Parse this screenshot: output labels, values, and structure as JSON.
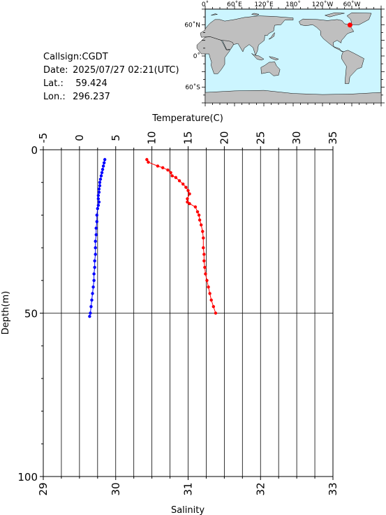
{
  "station": {
    "callsign_label": "Callsign:",
    "callsign": "CGDT",
    "date_label": "Date:",
    "date": "2025/07/27 02:21(UTC)",
    "lat_label": "Lat.:",
    "lat": "59.424",
    "lon_label": "Lon.:",
    "lon": "296.237"
  },
  "map": {
    "lon_ticks": [
      "0˚",
      "60˚E",
      "120˚E",
      "180˚",
      "120˚W",
      "60˚W"
    ],
    "lat_ticks": [
      "60˚N",
      "0˚",
      "60˚S"
    ],
    "ocean_color": "#ccf5ff",
    "land_color": "#bfbfbf",
    "marker_color": "#ff0000"
  },
  "chart_data": {
    "type": "line",
    "depth_label": "Depth(m)",
    "depth_range": [
      0,
      100
    ],
    "depth_ticks": [
      "0",
      "50",
      "100"
    ],
    "temperature_axis": {
      "label": "Temperature(C)",
      "range": [
        -5,
        35
      ],
      "ticks": [
        "-5",
        "0",
        "5",
        "10",
        "15",
        "20",
        "25",
        "30",
        "35"
      ]
    },
    "salinity_axis": {
      "label": "Salinity",
      "range": [
        29,
        33
      ],
      "ticks": [
        "29",
        "30",
        "31",
        "32",
        "33"
      ]
    },
    "grid": true,
    "series": [
      {
        "color": "#ff0000",
        "axis": "temperature",
        "depth": [
          3.0,
          3.8,
          5.0,
          5.5,
          6.2,
          7.0,
          8.0,
          8.5,
          9.5,
          10.5,
          11.5,
          12.5,
          13.5,
          15.0,
          16.0,
          16.5,
          17.5,
          19.0,
          20.0,
          21.5,
          23.0,
          25.0,
          27.0,
          30.0,
          32.0,
          34.0,
          36.0,
          38.0,
          40.0,
          42.0,
          44.0,
          46.0,
          48.0,
          50.0
        ],
        "values": [
          9.3,
          9.5,
          10.8,
          11.5,
          12.2,
          12.6,
          12.8,
          13.3,
          13.8,
          14.3,
          14.7,
          15.0,
          15.2,
          14.9,
          14.9,
          15.2,
          16.0,
          16.3,
          16.5,
          16.6,
          16.8,
          17.0,
          17.1,
          17.1,
          17.2,
          17.2,
          17.3,
          17.4,
          17.6,
          17.8,
          18.0,
          18.2,
          18.5,
          18.8
        ]
      },
      {
        "color": "#0000ff",
        "axis": "salinity",
        "depth": [
          3.0,
          4.0,
          5.0,
          6.0,
          7.0,
          8.0,
          9.0,
          10.0,
          11.0,
          12.0,
          13.0,
          14.0,
          15.0,
          16.0,
          17.0,
          18.0,
          20.0,
          22.0,
          24.0,
          26.0,
          28.0,
          30.0,
          32.0,
          34.0,
          36.0,
          38.0,
          40.0,
          42.0,
          44.0,
          46.0,
          48.0,
          50.0,
          51.0
        ],
        "values": [
          29.85,
          29.84,
          29.83,
          29.82,
          29.81,
          29.8,
          29.79,
          29.78,
          29.78,
          29.77,
          29.77,
          29.76,
          29.76,
          29.77,
          29.76,
          29.75,
          29.74,
          29.74,
          29.73,
          29.73,
          29.72,
          29.72,
          29.72,
          29.71,
          29.71,
          29.7,
          29.7,
          29.69,
          29.68,
          29.67,
          29.66,
          29.65,
          29.64
        ]
      }
    ]
  }
}
